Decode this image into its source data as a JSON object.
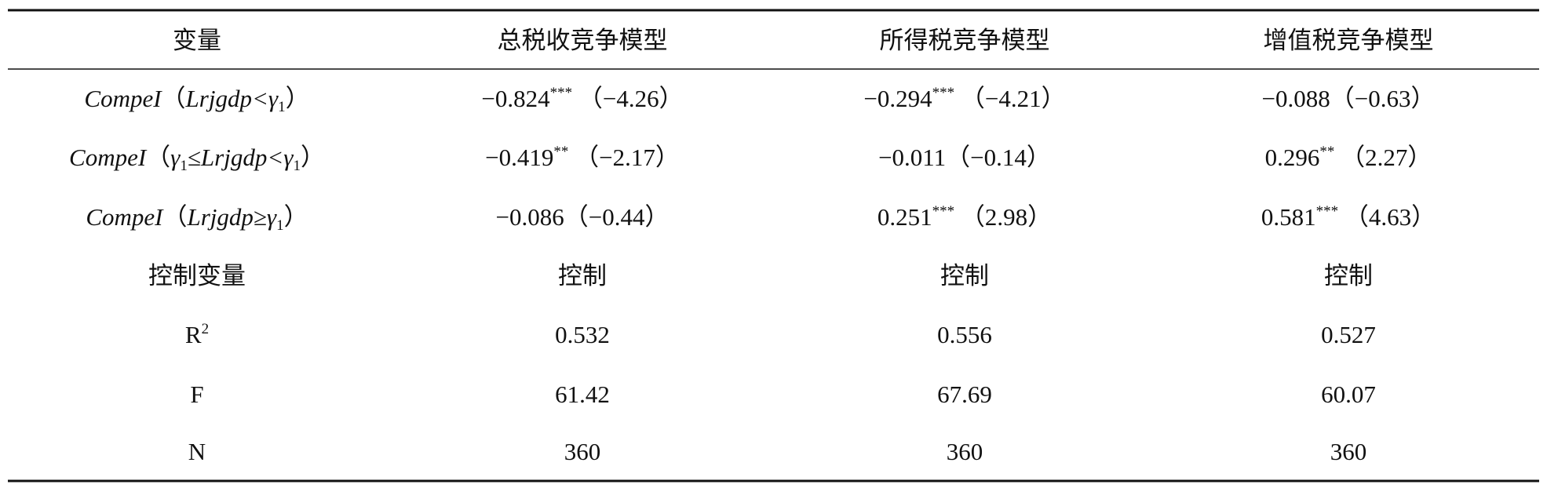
{
  "table": {
    "header": [
      "变量",
      "总税收竞争模型",
      "所得税竞争模型",
      "增值税竞争模型"
    ],
    "rows": [
      [
        [
          {
            "text": "CompeI",
            "style": "italic"
          },
          {
            "text": "（",
            "style": "normal"
          },
          {
            "text": "Lrjgdp<γ",
            "style": "italic"
          },
          {
            "text": "1",
            "style": "sub"
          },
          {
            "text": "）",
            "style": "normal"
          }
        ],
        [
          {
            "text": "−0.824",
            "style": "normal"
          },
          {
            "text": "***",
            "style": "sup"
          },
          {
            "text": " （−4.26）",
            "style": "normal"
          }
        ],
        [
          {
            "text": "−0.294",
            "style": "normal"
          },
          {
            "text": "***",
            "style": "sup"
          },
          {
            "text": " （−4.21）",
            "style": "normal"
          }
        ],
        "−0.088（−0.63）"
      ],
      [
        [
          {
            "text": "CompeI",
            "style": "italic"
          },
          {
            "text": "（",
            "style": "normal"
          },
          {
            "text": "γ",
            "style": "italic"
          },
          {
            "text": "1",
            "style": "sub"
          },
          {
            "text": "≤Lrjgdp<γ",
            "style": "italic"
          },
          {
            "text": "1",
            "style": "sub"
          },
          {
            "text": "）",
            "style": "normal"
          }
        ],
        [
          {
            "text": "−0.419",
            "style": "normal"
          },
          {
            "text": "**",
            "style": "sup"
          },
          {
            "text": " （−2.17）",
            "style": "normal"
          }
        ],
        "−0.011（−0.14）",
        [
          {
            "text": "0.296",
            "style": "normal"
          },
          {
            "text": "**",
            "style": "sup"
          },
          {
            "text": " （2.27）",
            "style": "normal"
          }
        ]
      ],
      [
        [
          {
            "text": "CompeI",
            "style": "italic"
          },
          {
            "text": "（",
            "style": "normal"
          },
          {
            "text": "Lrjgdp≥γ",
            "style": "italic"
          },
          {
            "text": "1",
            "style": "sub"
          },
          {
            "text": "）",
            "style": "normal"
          }
        ],
        "−0.086（−0.44）",
        [
          {
            "text": "0.251",
            "style": "normal"
          },
          {
            "text": "***",
            "style": "sup"
          },
          {
            "text": " （2.98）",
            "style": "normal"
          }
        ],
        [
          {
            "text": "0.581",
            "style": "normal"
          },
          {
            "text": "***",
            "style": "sup"
          },
          {
            "text": " （4.63）",
            "style": "normal"
          }
        ]
      ],
      [
        "控制变量",
        "控制",
        "控制",
        "控制"
      ],
      [
        [
          {
            "text": "R",
            "style": "normal"
          },
          {
            "text": "2",
            "style": "sup"
          }
        ],
        "0.532",
        "0.556",
        "0.527"
      ],
      [
        "F",
        "61.42",
        "67.69",
        "60.07"
      ],
      [
        "N",
        "360",
        "360",
        "360"
      ]
    ]
  }
}
